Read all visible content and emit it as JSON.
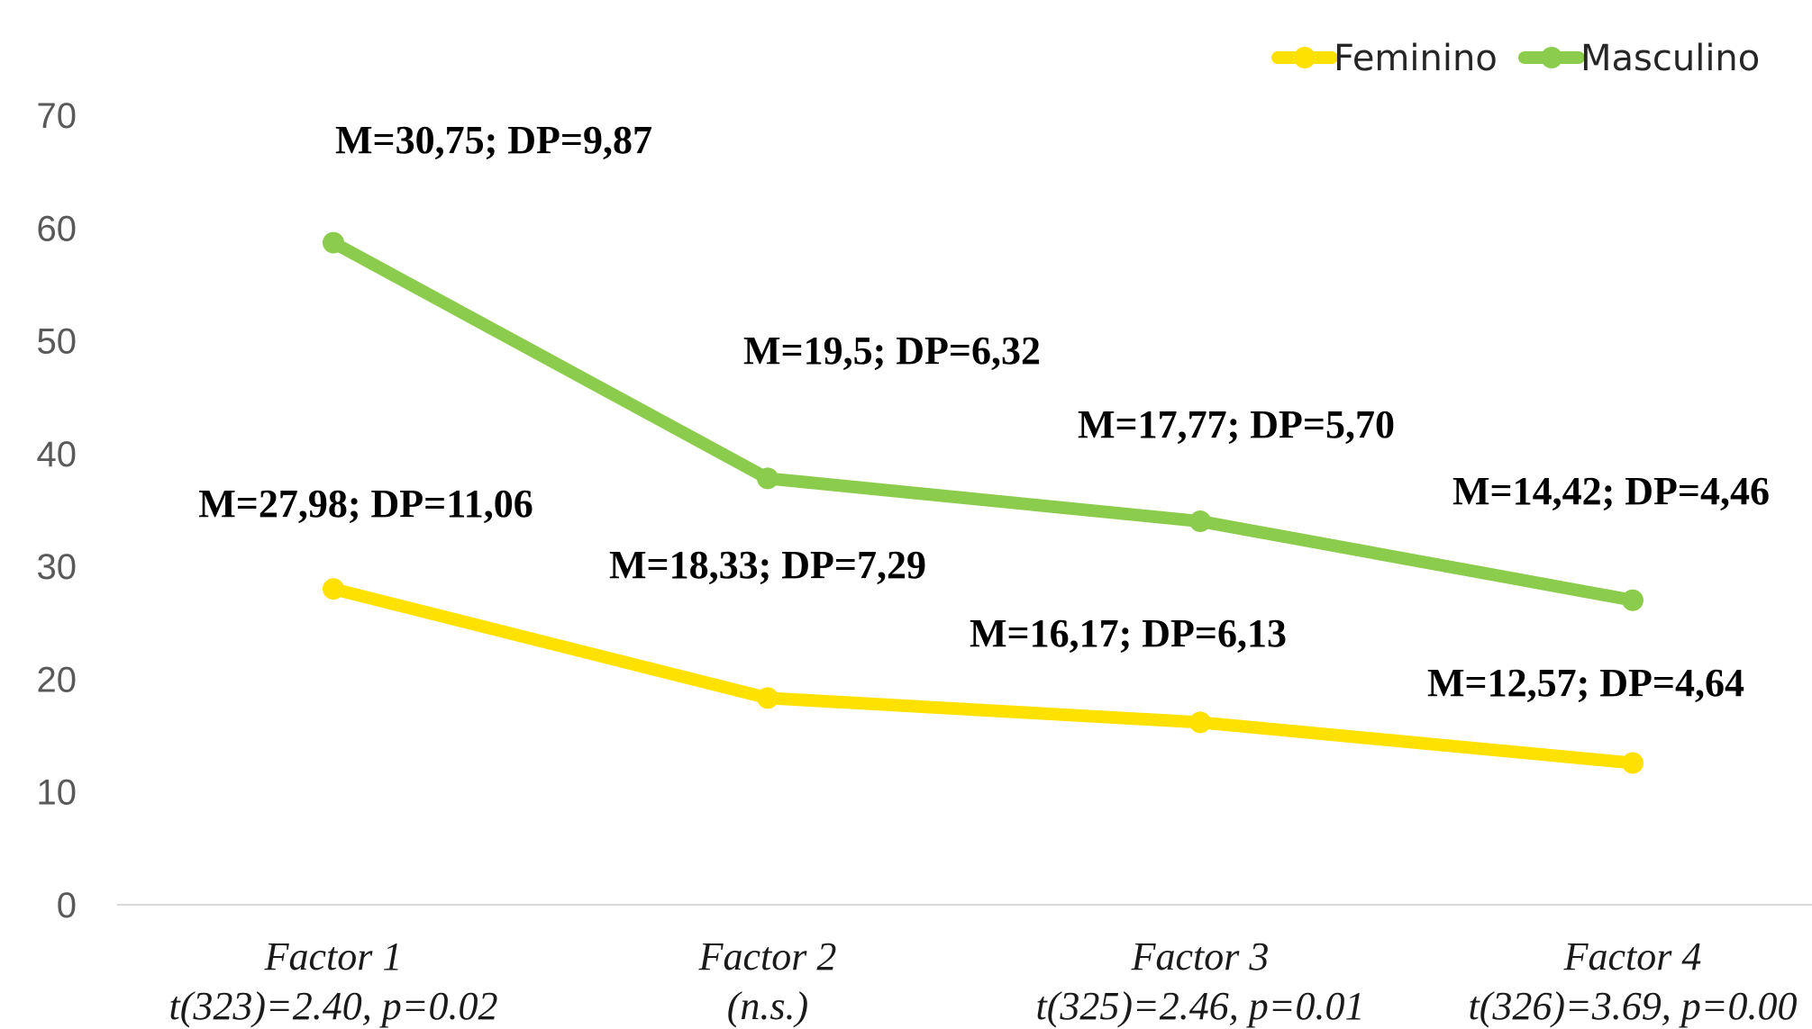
{
  "chart_data": {
    "type": "line",
    "title": "",
    "xlabel": "",
    "ylabel": "",
    "ylim": [
      0,
      70
    ],
    "yticks": [
      "0",
      "10",
      "20",
      "30",
      "40",
      "50",
      "60",
      "70"
    ],
    "grid": false,
    "legend_position": "top-right",
    "categories": [
      {
        "name": "Factor 1",
        "subtitle": "t(323)=2.40, p=0.02"
      },
      {
        "name": "Factor 2",
        "subtitle": "(n.s.)"
      },
      {
        "name": "Factor 3",
        "subtitle": "t(325)=2.46, p=0.01"
      },
      {
        "name": "Factor 4",
        "subtitle": "t(326)=3.69, p=0.00"
      }
    ],
    "series": [
      {
        "name": "Feminino",
        "color": "#FFE100",
        "values": [
          28,
          18.33,
          16.17,
          12.57
        ],
        "annotations": [
          "M=27,98; DP=11,06",
          "M=18,33; DP=7,29",
          "M=16,17; DP=6,13",
          "M=12,57; DP=4,64"
        ]
      },
      {
        "name": "Masculino",
        "color": "#8CCC4C",
        "values": [
          58.7,
          37.8,
          34,
          27
        ],
        "annotations": [
          "M=30,75; DP=9,87",
          "M=19,5; DP=6,32",
          "M=17,77; DP=5,70",
          "M=14,42; DP=4,46"
        ]
      }
    ]
  }
}
